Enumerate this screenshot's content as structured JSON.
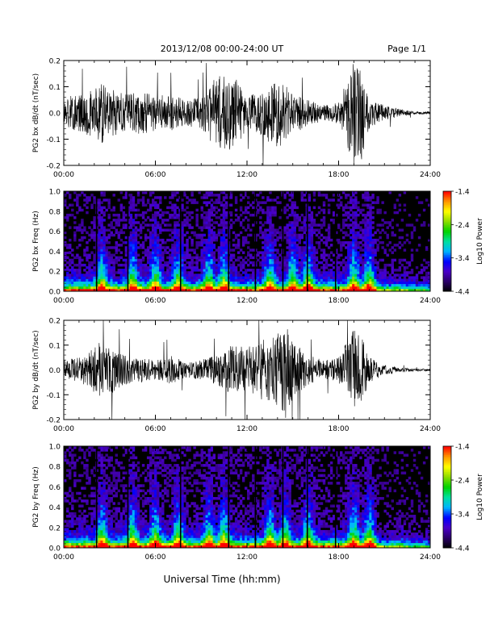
{
  "header": {
    "title": "2013/12/08   00:00-24:00 UT",
    "page": "Page 1/1"
  },
  "footer": {
    "xlabel": "Universal Time (hh:mm)"
  },
  "colorbar": {
    "label": "Log10 Power",
    "ticks": [
      "-1.4",
      "-2.4",
      "-3.4",
      "-4.4"
    ],
    "range": [
      -4.4,
      -1.4
    ],
    "colors": [
      "#000000",
      "#2a0068",
      "#4b00c8",
      "#0000ff",
      "#00b4ff",
      "#00e0a0",
      "#00d200",
      "#8cdc00",
      "#ffff00",
      "#ff9600",
      "#ff0000"
    ]
  },
  "chart_data": [
    {
      "type": "line",
      "name": "bx-timeseries",
      "ylabel": "PG2 bx dB/dt (nT/sec)",
      "xlim": [
        0,
        24
      ],
      "ylim": [
        -0.2,
        0.2
      ],
      "xticks": [
        "00:00",
        "06:00",
        "12:00",
        "18:00",
        "24:00"
      ],
      "yticks": [
        "0.2",
        "0.1",
        "0.0",
        "-0.1",
        "-0.2"
      ],
      "envelope_hours": [
        0,
        1,
        2,
        2.5,
        3,
        4,
        5,
        6,
        7,
        8,
        9,
        10,
        11,
        12,
        13,
        14,
        15,
        16,
        17,
        18,
        19,
        19.5,
        20,
        21,
        22,
        23,
        24
      ],
      "envelope_amplitude": [
        0.06,
        0.07,
        0.1,
        0.12,
        0.09,
        0.08,
        0.08,
        0.07,
        0.07,
        0.05,
        0.06,
        0.14,
        0.16,
        0.06,
        0.09,
        0.14,
        0.08,
        0.05,
        0.03,
        0.04,
        0.2,
        0.18,
        0.06,
        0.03,
        0.015,
        0.005,
        0.005
      ]
    },
    {
      "type": "heatmap",
      "name": "bx-spectrogram",
      "ylabel": "PG2 bx Freq (Hz)",
      "xlim": [
        0,
        24
      ],
      "ylim": [
        0,
        1.0
      ],
      "xticks": [
        "00:00",
        "06:00",
        "12:00",
        "18:00",
        "24:00"
      ],
      "yticks": [
        "1.0",
        "0.8",
        "0.6",
        "0.4",
        "0.2",
        "0.0"
      ],
      "bursts_hours": [
        2.5,
        4.5,
        6.0,
        7.5,
        9.5,
        10.5,
        13.5,
        15.0,
        16.0,
        19.0,
        20.0
      ],
      "gap_lines_hours": [
        2.15,
        4.2,
        7.65,
        10.8,
        12.55,
        14.35,
        15.95,
        17.8
      ]
    },
    {
      "type": "line",
      "name": "by-timeseries",
      "ylabel": "PG2 by dB/dt (nT/sec)",
      "xlim": [
        0,
        24
      ],
      "ylim": [
        -0.2,
        0.2
      ],
      "xticks": [
        "00:00",
        "06:00",
        "12:00",
        "18:00",
        "24:00"
      ],
      "yticks": [
        "0.2",
        "0.1",
        "0.0",
        "-0.1",
        "-0.2"
      ],
      "envelope_hours": [
        0,
        1,
        2,
        2.5,
        3,
        4,
        5,
        6,
        7,
        8,
        9,
        10,
        11,
        12,
        13,
        14,
        14.5,
        15,
        16,
        17,
        18,
        19,
        19.5,
        20,
        21,
        22,
        23,
        24
      ],
      "envelope_amplitude": [
        0.04,
        0.05,
        0.09,
        0.12,
        0.1,
        0.06,
        0.05,
        0.04,
        0.06,
        0.03,
        0.04,
        0.06,
        0.1,
        0.09,
        0.12,
        0.15,
        0.2,
        0.12,
        0.06,
        0.04,
        0.05,
        0.17,
        0.14,
        0.05,
        0.02,
        0.01,
        0.005,
        0.005
      ]
    },
    {
      "type": "heatmap",
      "name": "by-spectrogram",
      "ylabel": "PG2 by Freq (Hz)",
      "xlim": [
        0,
        24
      ],
      "ylim": [
        0,
        1.0
      ],
      "xticks": [
        "00:00",
        "06:00",
        "12:00",
        "18:00",
        "24:00"
      ],
      "yticks": [
        "1.0",
        "0.8",
        "0.6",
        "0.4",
        "0.2",
        "0.0"
      ],
      "bursts_hours": [
        2.5,
        4.5,
        6.0,
        7.5,
        9.5,
        10.5,
        13.5,
        14.5,
        16.0,
        19.0,
        20.0
      ],
      "gap_lines_hours": [
        2.15,
        4.2,
        7.65,
        10.8,
        12.55,
        14.35,
        15.95,
        17.8
      ]
    }
  ]
}
